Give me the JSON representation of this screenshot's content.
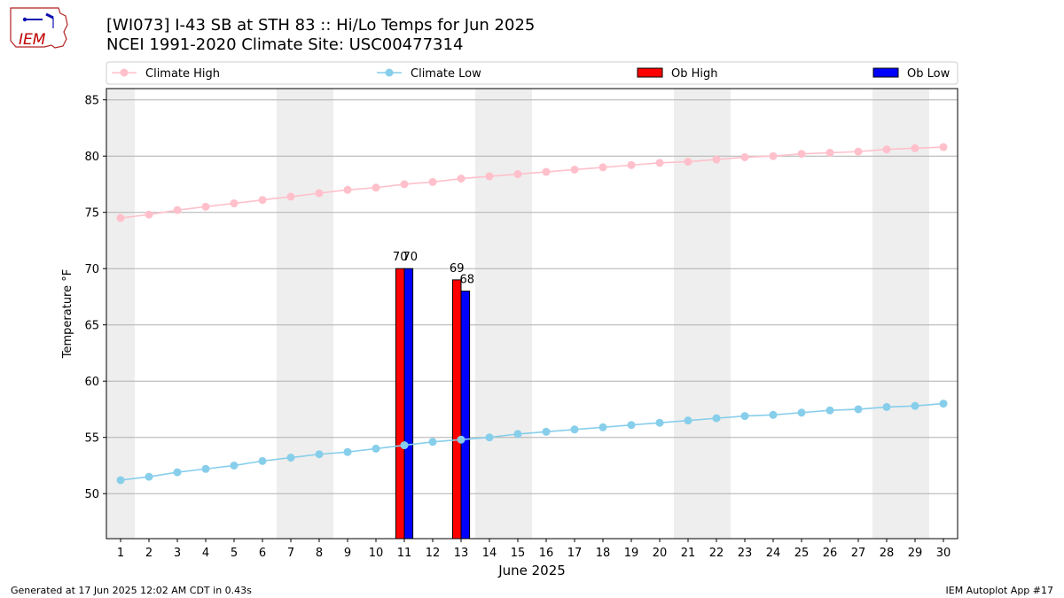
{
  "logo": {
    "text": "IEM"
  },
  "header": {
    "title_line1": "[WI073] I-43 SB at STH 83  :: Hi/Lo Temps for Jun 2025",
    "title_line2": "NCEI 1991-2020 Climate Site: USC00477314"
  },
  "footer": {
    "generated": "Generated at 17 Jun 2025 12:02 AM CDT in 0.43s",
    "app": "IEM Autoplot App #17"
  },
  "colors": {
    "climate_high": "#ffc0cb",
    "climate_low": "#87ceeb",
    "ob_high": "#ff0000",
    "ob_low": "#0000ff",
    "weekend_band": "#eeeeee",
    "grid": "#b0b0b0"
  },
  "chart_data": {
    "type": "bar",
    "xlabel": "June 2025",
    "ylabel": "Temperature °F",
    "xlim": [
      0.5,
      30.5
    ],
    "ylim": [
      46,
      86
    ],
    "yticks": [
      50,
      55,
      60,
      65,
      70,
      75,
      80,
      85
    ],
    "grid": true,
    "legend_position": "top",
    "legend": [
      "Climate High",
      "Climate Low",
      "Ob High",
      "Ob Low"
    ],
    "weekend_days": [
      1,
      7,
      8,
      14,
      15,
      21,
      22,
      28,
      29
    ],
    "days": [
      1,
      2,
      3,
      4,
      5,
      6,
      7,
      8,
      9,
      10,
      11,
      12,
      13,
      14,
      15,
      16,
      17,
      18,
      19,
      20,
      21,
      22,
      23,
      24,
      25,
      26,
      27,
      28,
      29,
      30
    ],
    "climate_high": [
      74.5,
      74.8,
      75.2,
      75.5,
      75.8,
      76.1,
      76.4,
      76.7,
      77.0,
      77.2,
      77.5,
      77.7,
      78.0,
      78.2,
      78.4,
      78.6,
      78.8,
      79.0,
      79.2,
      79.4,
      79.5,
      79.7,
      79.9,
      80.0,
      80.2,
      80.3,
      80.4,
      80.6,
      80.7,
      80.8
    ],
    "climate_low": [
      51.2,
      51.5,
      51.9,
      52.2,
      52.5,
      52.9,
      53.2,
      53.5,
      53.7,
      54.0,
      54.3,
      54.6,
      54.8,
      55.0,
      55.3,
      55.5,
      55.7,
      55.9,
      56.1,
      56.3,
      56.5,
      56.7,
      56.9,
      57.0,
      57.2,
      57.4,
      57.5,
      57.7,
      57.8,
      58.0
    ],
    "series": [
      {
        "name": "Ob High",
        "days": [
          11,
          13
        ],
        "values": [
          70,
          69
        ],
        "labels": [
          "70",
          "69"
        ]
      },
      {
        "name": "Ob Low",
        "days": [
          11,
          13
        ],
        "values": [
          70,
          68
        ],
        "labels": [
          "70",
          "68"
        ]
      }
    ]
  }
}
